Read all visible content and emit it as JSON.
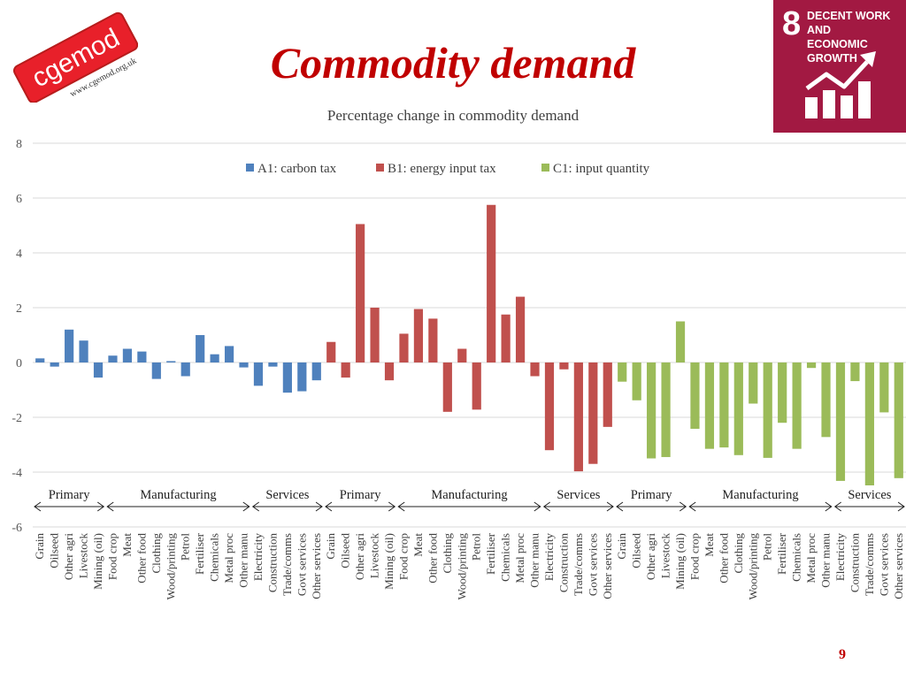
{
  "header": {
    "title": "Commodity demand",
    "page_number": "9"
  },
  "logo": {
    "name": "cgemod",
    "url_text": "www.cgemod.org.uk",
    "color": "#e8202a"
  },
  "sdg_badge": {
    "number": "8",
    "line1": "DECENT WORK AND",
    "line2": "ECONOMIC GROWTH",
    "color": "#a21942"
  },
  "chart_data": {
    "type": "bar",
    "title": "Percentage change in commodity demand",
    "ylim": [
      -6,
      8
    ],
    "yticks": [
      8,
      6,
      4,
      2,
      0,
      -2,
      -4,
      -6
    ],
    "grid": true,
    "legend_position": "top",
    "categories": [
      "Grain",
      "Oilseed",
      "Other agri",
      "Livestock",
      "Mining (oil)",
      "Food crop",
      "Meat",
      "Other food",
      "Clothing",
      "Wood/printing",
      "Petrol",
      "Fertiliser",
      "Chemicals",
      "Metal proc",
      "Other manu",
      "Electricity",
      "Construction",
      "Trade/comms",
      "Govt services",
      "Other services"
    ],
    "groups": [
      {
        "label": "Primary",
        "start": 0,
        "end": 4
      },
      {
        "label": "Manufacturing",
        "start": 5,
        "end": 14
      },
      {
        "label": "Services",
        "start": 15,
        "end": 19
      }
    ],
    "series": [
      {
        "name": "A1: carbon tax",
        "color": "#4f81bd",
        "values": [
          0.15,
          -0.15,
          1.2,
          0.8,
          -0.55,
          0.25,
          0.5,
          0.4,
          -0.6,
          0.05,
          -0.5,
          1.0,
          0.3,
          0.6,
          -0.18,
          -0.85,
          -0.15,
          -1.1,
          -1.05,
          -0.65
        ]
      },
      {
        "name": "B1: energy input tax",
        "color": "#c0504d",
        "values": [
          0.75,
          -0.55,
          5.05,
          2.0,
          -0.65,
          1.05,
          1.95,
          1.6,
          -1.8,
          0.5,
          -1.72,
          5.75,
          1.75,
          2.4,
          -0.5,
          -3.2,
          -0.25,
          -3.97,
          -3.7,
          -2.35
        ]
      },
      {
        "name": "C1: input quantity",
        "color": "#9bbb59",
        "values": [
          -0.7,
          -1.38,
          -3.5,
          -3.45,
          1.5,
          -2.42,
          -3.15,
          -3.1,
          -3.38,
          -1.5,
          -3.48,
          -2.2,
          -3.15,
          -0.2,
          -2.72,
          -4.32,
          -0.68,
          -4.78,
          -1.82,
          -4.22
        ]
      }
    ]
  }
}
